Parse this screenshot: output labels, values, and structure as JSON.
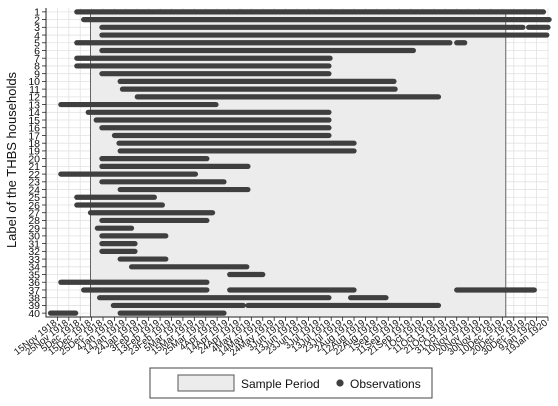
{
  "chart_data": {
    "type": "gantt",
    "ylabel": "Label of the THBS households",
    "legend": {
      "placement": "bottom",
      "entries": [
        "Sample Period",
        "Observations"
      ]
    },
    "colors": {
      "bar": "#3f3f3f",
      "sample_fill": "#ececec",
      "sample_stroke": "#555555",
      "grid": "#e2e2e2"
    },
    "sample_period": [
      "1918-12-14",
      "1919-12-13"
    ],
    "xlim": [
      "1918-11-05",
      "1920-01-19"
    ],
    "x_tick_labels": [
      "15Nov 1918",
      "25Nov 1918",
      "5Dec 1918",
      "15Dec 1918",
      "25Dec 1918",
      "4Jan 1919",
      "14Jan 1919",
      "24Jan 1919",
      "3Feb 1919",
      "13Feb 1919",
      "23Feb 1919",
      "5Mar 1919",
      "15Mar 1919",
      "25Mar 1919",
      "4Apr 1919",
      "14Apr 1919",
      "24Apr 1919",
      "4May 1919",
      "14May 1919",
      "24May 1919",
      "3Jun 1919",
      "13Jun 1919",
      "23Jun 1919",
      "3Jul 1919",
      "13Jul 1919",
      "23Jul 1919",
      "2Aug 1919",
      "12Aug 1919",
      "22Aug 1919",
      "1Sep 1919",
      "11Sep 1919",
      "21Sep 1919",
      "1Oct 1919",
      "11Oct 1919",
      "21Oct 1919",
      "31Oct 1919",
      "10Nov 1919",
      "20Nov 1919",
      "30Nov 1919",
      "10Dec 1919",
      "20Dec 1919",
      "30Dec 1919",
      "9Jan 1920",
      "19Jan 1920"
    ],
    "households": [
      {
        "label": "1",
        "segments": [
          [
            "1918-12-02",
            "1920-01-15"
          ]
        ]
      },
      {
        "label": "2",
        "segments": [
          [
            "1918-12-08",
            "1920-01-20"
          ]
        ]
      },
      {
        "label": "3",
        "segments": [
          [
            "1918-12-24",
            "1919-12-28"
          ],
          [
            "1920-01-02",
            "1920-01-19"
          ]
        ]
      },
      {
        "label": "4",
        "segments": [
          [
            "1918-12-24",
            "1920-01-18"
          ]
        ]
      },
      {
        "label": "5",
        "segments": [
          [
            "1918-12-02",
            "1919-10-25"
          ],
          [
            "1919-10-31",
            "1919-11-07"
          ]
        ]
      },
      {
        "label": "6",
        "segments": [
          [
            "1918-12-24",
            "1919-09-23"
          ]
        ]
      },
      {
        "label": "7",
        "segments": [
          [
            "1918-12-02",
            "1919-07-12"
          ]
        ]
      },
      {
        "label": "8",
        "segments": [
          [
            "1918-12-02",
            "1919-07-11"
          ]
        ]
      },
      {
        "label": "9",
        "segments": [
          [
            "1918-12-24",
            "1919-07-11"
          ]
        ]
      },
      {
        "label": "10",
        "segments": [
          [
            "1919-01-09",
            "1919-09-06"
          ]
        ]
      },
      {
        "label": "11",
        "segments": [
          [
            "1919-01-11",
            "1919-09-07"
          ]
        ]
      },
      {
        "label": "12",
        "segments": [
          [
            "1919-01-24",
            "1919-10-15"
          ]
        ]
      },
      {
        "label": "13",
        "segments": [
          [
            "1918-11-18",
            "1919-04-03"
          ]
        ]
      },
      {
        "label": "14",
        "segments": [
          [
            "1918-12-12",
            "1919-07-11"
          ]
        ]
      },
      {
        "label": "15",
        "segments": [
          [
            "1918-12-19",
            "1919-07-11"
          ]
        ]
      },
      {
        "label": "16",
        "segments": [
          [
            "1918-12-24",
            "1919-07-11"
          ]
        ]
      },
      {
        "label": "17",
        "segments": [
          [
            "1919-01-04",
            "1919-07-11"
          ]
        ]
      },
      {
        "label": "18",
        "segments": [
          [
            "1919-01-08",
            "1919-08-02"
          ]
        ]
      },
      {
        "label": "19",
        "segments": [
          [
            "1919-01-09",
            "1919-08-02"
          ]
        ]
      },
      {
        "label": "20",
        "segments": [
          [
            "1918-12-24",
            "1919-03-26"
          ]
        ]
      },
      {
        "label": "21",
        "segments": [
          [
            "1918-12-24",
            "1919-05-01"
          ]
        ]
      },
      {
        "label": "22",
        "segments": [
          [
            "1918-11-18",
            "1919-03-16"
          ]
        ]
      },
      {
        "label": "23",
        "segments": [
          [
            "1918-12-24",
            "1919-04-10"
          ]
        ]
      },
      {
        "label": "24",
        "segments": [
          [
            "1919-01-09",
            "1919-05-01"
          ]
        ]
      },
      {
        "label": "25",
        "segments": [
          [
            "1918-12-02",
            "1919-02-08"
          ]
        ]
      },
      {
        "label": "26",
        "segments": [
          [
            "1918-12-02",
            "1919-02-15"
          ]
        ]
      },
      {
        "label": "27",
        "segments": [
          [
            "1918-12-14",
            "1919-03-31"
          ]
        ]
      },
      {
        "label": "28",
        "segments": [
          [
            "1918-12-24",
            "1919-03-26"
          ]
        ]
      },
      {
        "label": "29",
        "segments": [
          [
            "1918-12-20",
            "1919-01-19"
          ]
        ]
      },
      {
        "label": "30",
        "segments": [
          [
            "1918-12-24",
            "1919-02-18"
          ]
        ]
      },
      {
        "label": "31",
        "segments": [
          [
            "1918-12-24",
            "1919-01-22"
          ]
        ]
      },
      {
        "label": "32",
        "segments": [
          [
            "1918-12-24",
            "1919-01-22"
          ]
        ]
      },
      {
        "label": "33",
        "segments": [
          [
            "1919-01-09",
            "1919-02-18"
          ]
        ]
      },
      {
        "label": "34",
        "segments": [
          [
            "1919-01-19",
            "1919-04-30"
          ]
        ]
      },
      {
        "label": "35",
        "segments": [
          [
            "1919-04-15",
            "1919-05-14"
          ]
        ]
      },
      {
        "label": "36",
        "segments": [
          [
            "1918-11-18",
            "1919-03-26"
          ]
        ]
      },
      {
        "label": "37",
        "segments": [
          [
            "1918-12-08",
            "1919-03-26"
          ],
          [
            "1919-04-15",
            "1919-08-02"
          ],
          [
            "1919-10-31",
            "1920-01-07"
          ]
        ]
      },
      {
        "label": "38",
        "segments": [
          [
            "1918-12-22",
            "1919-07-11"
          ],
          [
            "1919-07-30",
            "1919-08-30"
          ]
        ]
      },
      {
        "label": "39",
        "segments": [
          [
            "1919-01-03",
            "1919-04-27"
          ],
          [
            "1919-05-01",
            "1919-10-15"
          ]
        ]
      },
      {
        "label": "40",
        "segments": [
          [
            "1918-11-09",
            "1918-12-01"
          ],
          [
            "1919-01-09",
            "1919-04-10"
          ]
        ]
      }
    ]
  }
}
